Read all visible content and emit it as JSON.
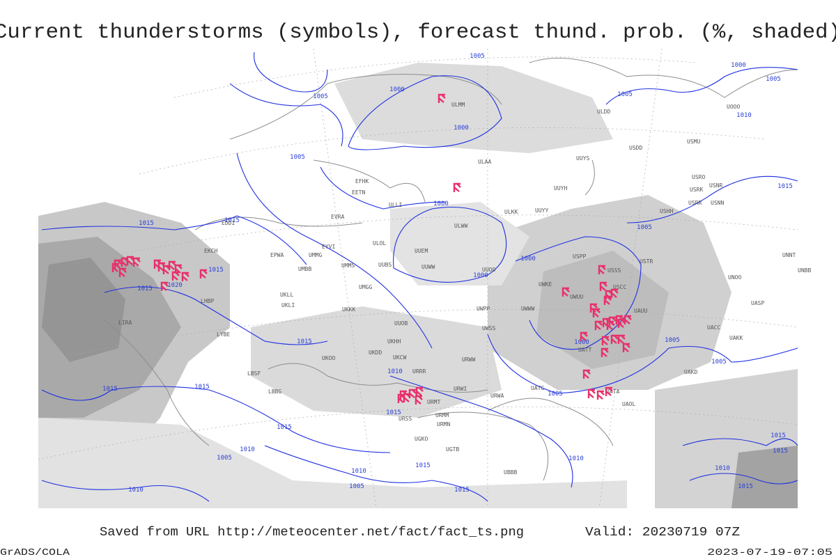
{
  "title": "Current thunderstorms (symbols), forecast thund. prob. (%, shaded)",
  "footer": {
    "source": "Saved from URL http://meteocenter.net/fact/fact_ts.png",
    "valid": "Valid: 20230719 07Z",
    "software": "GrADS/COLA",
    "timestamp": "2023-07-19-07:05"
  },
  "isobar_labels": [
    "1005",
    "1000",
    "1005",
    "1000",
    "1005",
    "1005",
    "1010",
    "1000",
    "1005",
    "1015",
    "1000",
    "1015",
    "1015",
    "1005",
    "1000",
    "1000",
    "1015",
    "1015",
    "1020",
    "1000",
    "1015",
    "1005",
    "1005",
    "1010",
    "1015",
    "1015",
    "1005",
    "1015",
    "1015",
    "1010",
    "1005",
    "1010",
    "1015",
    "1010",
    "1005",
    "1010",
    "1015",
    "1015",
    "1015",
    "1010",
    "1015"
  ],
  "station_labels": [
    "ULMM",
    "ULAA",
    "ULOL",
    "ULLI",
    "EFHK",
    "EETN",
    "EVRA",
    "ULWW",
    "UUEM",
    "UUWW",
    "UUOO",
    "UWKE",
    "UUYY",
    "UUYH",
    "ULKK",
    "UUYS",
    "USSS",
    "USCC",
    "USTR",
    "USPP",
    "UWUU",
    "UWWW",
    "UWPP",
    "UUOB",
    "UKKK",
    "UMMS",
    "UMMG",
    "UMBB",
    "EYVI",
    "EPWA",
    "UKLL",
    "UKLI",
    "UKHH",
    "UKDD",
    "UKOO",
    "UKCW",
    "URRR",
    "URWW",
    "UWSS",
    "URWI",
    "URWA",
    "URMT",
    "URMM",
    "URMN",
    "UGTB",
    "UGKO",
    "UBBB",
    "UATT",
    "UATG",
    "UATA",
    "UAOL",
    "UACC",
    "UAKK",
    "UAKD",
    "UASP",
    "UAUU",
    "UUBS",
    "UMGG",
    "UNNT",
    "UNBB",
    "UNOO",
    "USHH",
    "USRR",
    "USNN",
    "USRK",
    "USNR",
    "USRO",
    "USMU",
    "UOOO",
    "USDD",
    "ULDD",
    "URSS",
    "LBBG",
    "LBSF",
    "LYBE",
    "LHBP",
    "LIRA",
    "EDDI",
    "EKCH"
  ]
}
